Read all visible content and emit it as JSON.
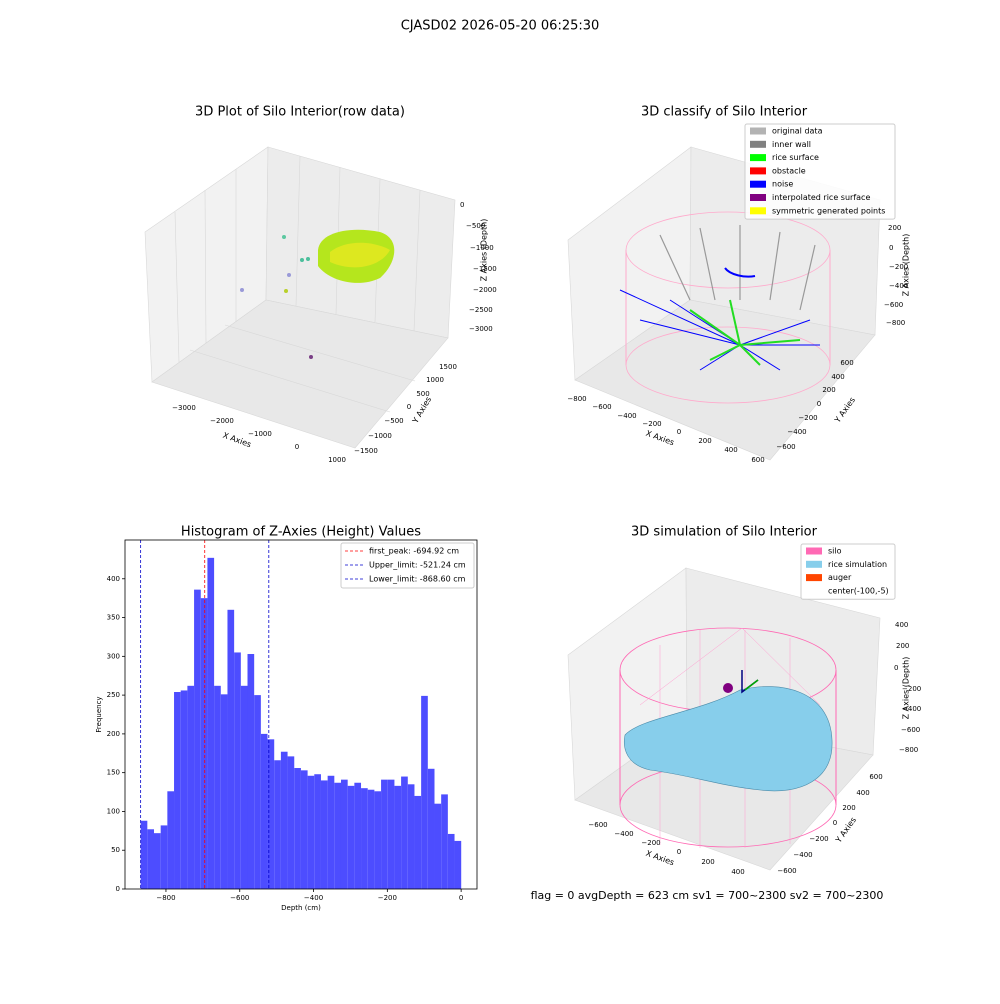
{
  "title": "CJASD02 2026-05-20 06:25:30",
  "status_text": "flag = 0     avgDepth = 623 cm  sv1 = 700~2300  sv2 = 700~2300",
  "chart_data": [
    {
      "type": "scatter3d",
      "title": "3D Plot of Silo Interior(row data)",
      "xlabel": "X Axies",
      "ylabel": "Y Axies",
      "zlabel": "Z Axies (Depth)",
      "xtick_labels": [
        "−3000",
        "−2000",
        "−1000",
        "0",
        "1000"
      ],
      "ytick_labels": [
        "−1500",
        "−1000",
        "−500",
        "0",
        "500",
        "1000",
        "1500"
      ],
      "ztick_labels": [
        "0",
        "−500",
        "−1000",
        "−1500",
        "−2000",
        "−2500",
        "−3000"
      ]
    },
    {
      "type": "scatter3d",
      "title": "3D classify of Silo Interior",
      "xlabel": "X Axies",
      "ylabel": "Y Axies",
      "zlabel": "Z Axies (Depth)",
      "xtick_labels": [
        "−800",
        "−600",
        "−400",
        "−200",
        "0",
        "200",
        "400",
        "600"
      ],
      "ytick_labels": [
        "−600",
        "−400",
        "−200",
        "0",
        "200",
        "400",
        "600"
      ],
      "ztick_labels": [
        "200",
        "0",
        "−200",
        "−400",
        "−600",
        "−800"
      ],
      "legend": [
        {
          "name": "original data",
          "color": "#b3b3b3"
        },
        {
          "name": "inner wall",
          "color": "#808080"
        },
        {
          "name": "rice surface",
          "color": "#00ff00"
        },
        {
          "name": "obstacle",
          "color": "#ff0000"
        },
        {
          "name": "noise",
          "color": "#0000ff"
        },
        {
          "name": "interpolated rice surface",
          "color": "#800080"
        },
        {
          "name": "symmetric generated points",
          "color": "#ffff00"
        }
      ]
    },
    {
      "type": "histogram",
      "title": "Histogram of Z-Axies (Height) Values",
      "xlabel": "Depth (cm)",
      "ylabel": "Frequency",
      "color": "#4d4dff",
      "bins": [
        -868.6,
        -850.5,
        -832.4,
        -814.3,
        -796.2,
        -778.1,
        -760.0,
        -741.9,
        -723.8,
        -705.7,
        -687.6,
        -669.5,
        -651.4,
        -633.3,
        -615.2,
        -597.1,
        -579.0,
        -560.9,
        -542.8,
        -524.7,
        -506.6,
        -488.5,
        -470.4,
        -452.3,
        -434.2,
        -416.1,
        -398.0,
        -379.9,
        -361.8,
        -343.7,
        -325.6,
        -307.5,
        -289.4,
        -271.3,
        -253.2,
        -235.1,
        -217.0,
        -198.9,
        -180.8,
        -162.7,
        -144.6,
        -126.5,
        -108.4,
        -90.3,
        -72.2,
        -54.1,
        -36.0,
        -17.9,
        0.2
      ],
      "counts": [
        88,
        77,
        72,
        82,
        126,
        254,
        256,
        262,
        386,
        375,
        427,
        262,
        251,
        360,
        305,
        262,
        303,
        250,
        200,
        193,
        166,
        177,
        171,
        156,
        153,
        146,
        148,
        140,
        146,
        137,
        141,
        133,
        137,
        130,
        128,
        126,
        141,
        141,
        133,
        145,
        135,
        120,
        249,
        155,
        110,
        122,
        71,
        62
      ],
      "vlines": [
        {
          "name": "first_peak: -694.92 cm",
          "value": -694.92,
          "color": "#ff0000"
        },
        {
          "name": "Upper_limit: -521.24 cm",
          "value": -521.24,
          "color": "#0000cc"
        },
        {
          "name": "Lower_limit: -868.60 cm",
          "value": -868.6,
          "color": "#0000cc"
        }
      ],
      "xlim": [
        -911,
        43
      ],
      "ylim": [
        0,
        450
      ],
      "xticks": [
        {
          "value": -800,
          "label": "−800"
        },
        {
          "value": -600,
          "label": "−600"
        },
        {
          "value": -400,
          "label": "−400"
        },
        {
          "value": -200,
          "label": "−200"
        },
        0
      ],
      "yticks": [
        0,
        50,
        100,
        150,
        200,
        250,
        300,
        350,
        400
      ],
      "legend": "upper right"
    },
    {
      "type": "surface3d",
      "title": "3D simulation of Silo Interior",
      "xlabel": "X Axies",
      "ylabel": "Y Axies",
      "zlabel": "Z Axies (Depth)",
      "xtick_labels": [
        "−600",
        "−400",
        "−200",
        "0",
        "200",
        "400"
      ],
      "ytick_labels": [
        "600",
        "400",
        "200",
        "0",
        "−200",
        "−400",
        "−600"
      ],
      "ztick_labels": [
        "400",
        "200",
        "0",
        "−200",
        "−400",
        "−600",
        "−800"
      ],
      "legend": [
        {
          "name": "silo",
          "color": "#ff69b4"
        },
        {
          "name": "rice simulation",
          "color": "#87ceeb"
        },
        {
          "name": "auger",
          "color": "#ff4500"
        },
        {
          "name": "center(-100,-5)"
        }
      ]
    }
  ]
}
